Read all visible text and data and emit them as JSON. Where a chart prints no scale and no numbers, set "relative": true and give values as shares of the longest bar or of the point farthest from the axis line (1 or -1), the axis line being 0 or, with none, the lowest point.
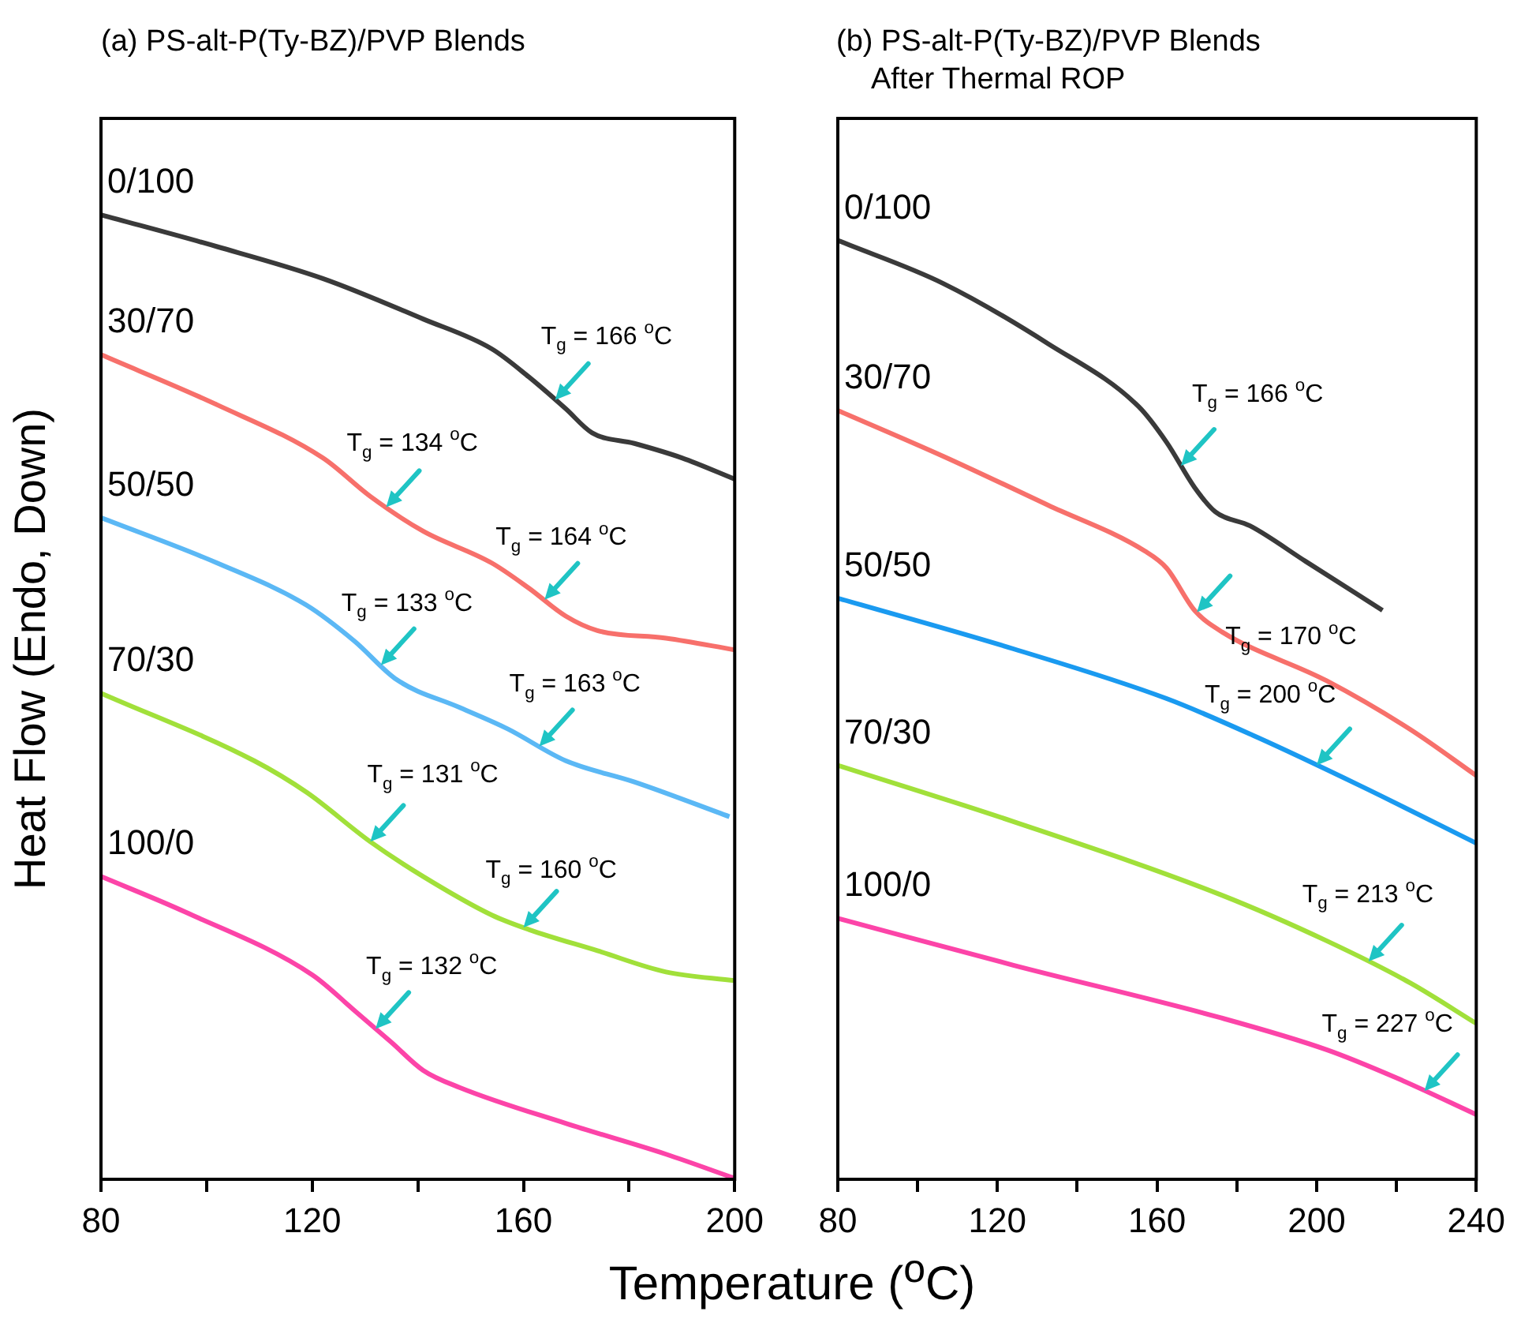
{
  "chart_data": [
    {
      "type": "line",
      "title": "(a) PS-alt-P(Ty-BZ)/PVP Blends",
      "xlabel": "Temperature ($^{o}$C)",
      "ylabel": "Heat Flow (Endo, Down)",
      "relative": true,
      "xlim": [
        80,
        200
      ],
      "xticks": [
        80,
        {
          "value": 100,
          "label": null
        },
        120,
        {
          "value": 140,
          "label": null
        },
        160,
        {
          "value": 180,
          "label": null
        },
        200
      ],
      "legend": false,
      "grid": false,
      "marker": "none",
      "series": [
        {
          "name": "0/100",
          "color": "#3a3a3a",
          "x": [
            80,
            102,
            122,
            141,
            154,
            161,
            168,
            173,
            181,
            190,
            200
          ],
          "values": [
            1.0,
            0.967,
            0.934,
            0.892,
            0.861,
            0.832,
            0.799,
            0.774,
            0.763,
            0.748,
            0.726
          ]
        },
        {
          "name": "30/70",
          "color": "#f7706b",
          "x": [
            80,
            102,
            122,
            131,
            141,
            154,
            161,
            168,
            174,
            187,
            200
          ],
          "values": [
            0.855,
            0.803,
            0.748,
            0.708,
            0.672,
            0.639,
            0.613,
            0.584,
            0.569,
            0.561,
            0.549
          ]
        },
        {
          "name": "50/50",
          "color": "#5bb8f5",
          "x": [
            80,
            102,
            119,
            128,
            136,
            148,
            157,
            168,
            181,
            199
          ],
          "values": [
            0.686,
            0.639,
            0.595,
            0.558,
            0.518,
            0.489,
            0.467,
            0.434,
            0.412,
            0.376
          ]
        },
        {
          "name": "70/30",
          "color": "#a1e03a",
          "x": [
            80,
            109,
            119,
            131,
            141,
            154,
            161,
            174,
            187,
            200
          ],
          "values": [
            0.504,
            0.434,
            0.401,
            0.35,
            0.314,
            0.274,
            0.259,
            0.237,
            0.215,
            0.206
          ]
        },
        {
          "name": "100/0",
          "color": "#fc44a8",
          "x": [
            80,
            96,
            120,
            128,
            135,
            141,
            148,
            168,
            187,
            200
          ],
          "values": [
            0.314,
            0.277,
            0.212,
            0.175,
            0.142,
            0.113,
            0.095,
            0.058,
            0.026,
            0.001
          ]
        }
      ],
      "annotations": [
        {
          "text": "T$_{g}$ = 166 $^{o}$C",
          "x": 166,
          "y": 0.808
        },
        {
          "text": "T$_{g}$ = 134 $^{o}$C",
          "x": 134,
          "y": 0.697
        },
        {
          "text": "T$_{g}$ = 164 $^{o}$C",
          "x": 164,
          "y": 0.601
        },
        {
          "text": "T$_{g}$ = 133 $^{o}$C",
          "x": 133,
          "y": 0.533
        },
        {
          "text": "T$_{g}$ = 163 $^{o}$C",
          "x": 163,
          "y": 0.449
        },
        {
          "text": "T$_{g}$ = 131 $^{o}$C",
          "x": 131,
          "y": 0.35
        },
        {
          "text": "T$_{g}$ = 160 $^{o}$C",
          "x": 160,
          "y": 0.261
        },
        {
          "text": "T$_{g}$ = 132 $^{o}$C",
          "x": 132,
          "y": 0.156
        }
      ]
    },
    {
      "type": "line",
      "title": "(b) PS-alt-P(Ty-BZ)/PVP Blends",
      "subtitle": "After Thermal ROP",
      "relative": true,
      "xlim": [
        80,
        240
      ],
      "xticks": [
        80,
        {
          "value": 100,
          "label": null
        },
        120,
        {
          "value": 140,
          "label": null
        },
        160,
        {
          "value": 180,
          "label": null
        },
        200,
        {
          "value": 220,
          "label": null
        },
        240
      ],
      "legend": false,
      "grid": false,
      "marker": "none",
      "series": [
        {
          "name": "0/100",
          "color": "#3a3a3a",
          "x": [
            80,
            106.5,
            132.7,
            155.4,
            162.4,
            169.4,
            174.6,
            183.3,
            197.3,
            216.5
          ],
          "values": [
            1.0,
            0.954,
            0.89,
            0.823,
            0.785,
            0.737,
            0.711,
            0.696,
            0.658,
            0.606
          ]
        },
        {
          "name": "30/70",
          "color": "#f7706b",
          "x": [
            80,
            106.5,
            132.7,
            157,
            162.4,
            169.4,
            176.3,
            202.5,
            223.5,
            240
          ],
          "values": [
            0.819,
            0.77,
            0.718,
            0.669,
            0.651,
            0.606,
            0.583,
            0.531,
            0.479,
            0.43
          ]
        },
        {
          "name": "50/50",
          "color": "#1a9af0",
          "x": [
            80,
            124,
            162.4,
            185,
            211,
            240
          ],
          "values": [
            0.619,
            0.565,
            0.512,
            0.471,
            0.419,
            0.358
          ]
        },
        {
          "name": "70/30",
          "color": "#a1e03a",
          "x": [
            80,
            124,
            176,
            202.5,
            223.5,
            240
          ],
          "values": [
            0.441,
            0.381,
            0.303,
            0.254,
            0.209,
            0.166
          ]
        },
        {
          "name": "100/0",
          "color": "#fc44a8",
          "x": [
            80,
            124,
            176,
            202.5,
            220,
            240
          ],
          "values": [
            0.278,
            0.228,
            0.172,
            0.138,
            0.108,
            0.069
          ]
        }
      ],
      "annotations": [
        {
          "text": "T$_{g}$ = 166 $^{o}$C",
          "x": 166,
          "y": 0.76
        },
        {
          "text": "T$_{g}$ = 170 $^{o}$C",
          "x": 170,
          "y": 0.604
        },
        {
          "text": "T$_{g}$ = 200 $^{o}$C",
          "x": 200,
          "y": 0.441
        },
        {
          "text": "T$_{g}$ = 213 $^{o}$C",
          "x": 213,
          "y": 0.232
        },
        {
          "text": "T$_{g}$ = 227 $^{o}$C",
          "x": 227,
          "y": 0.094
        }
      ]
    }
  ]
}
